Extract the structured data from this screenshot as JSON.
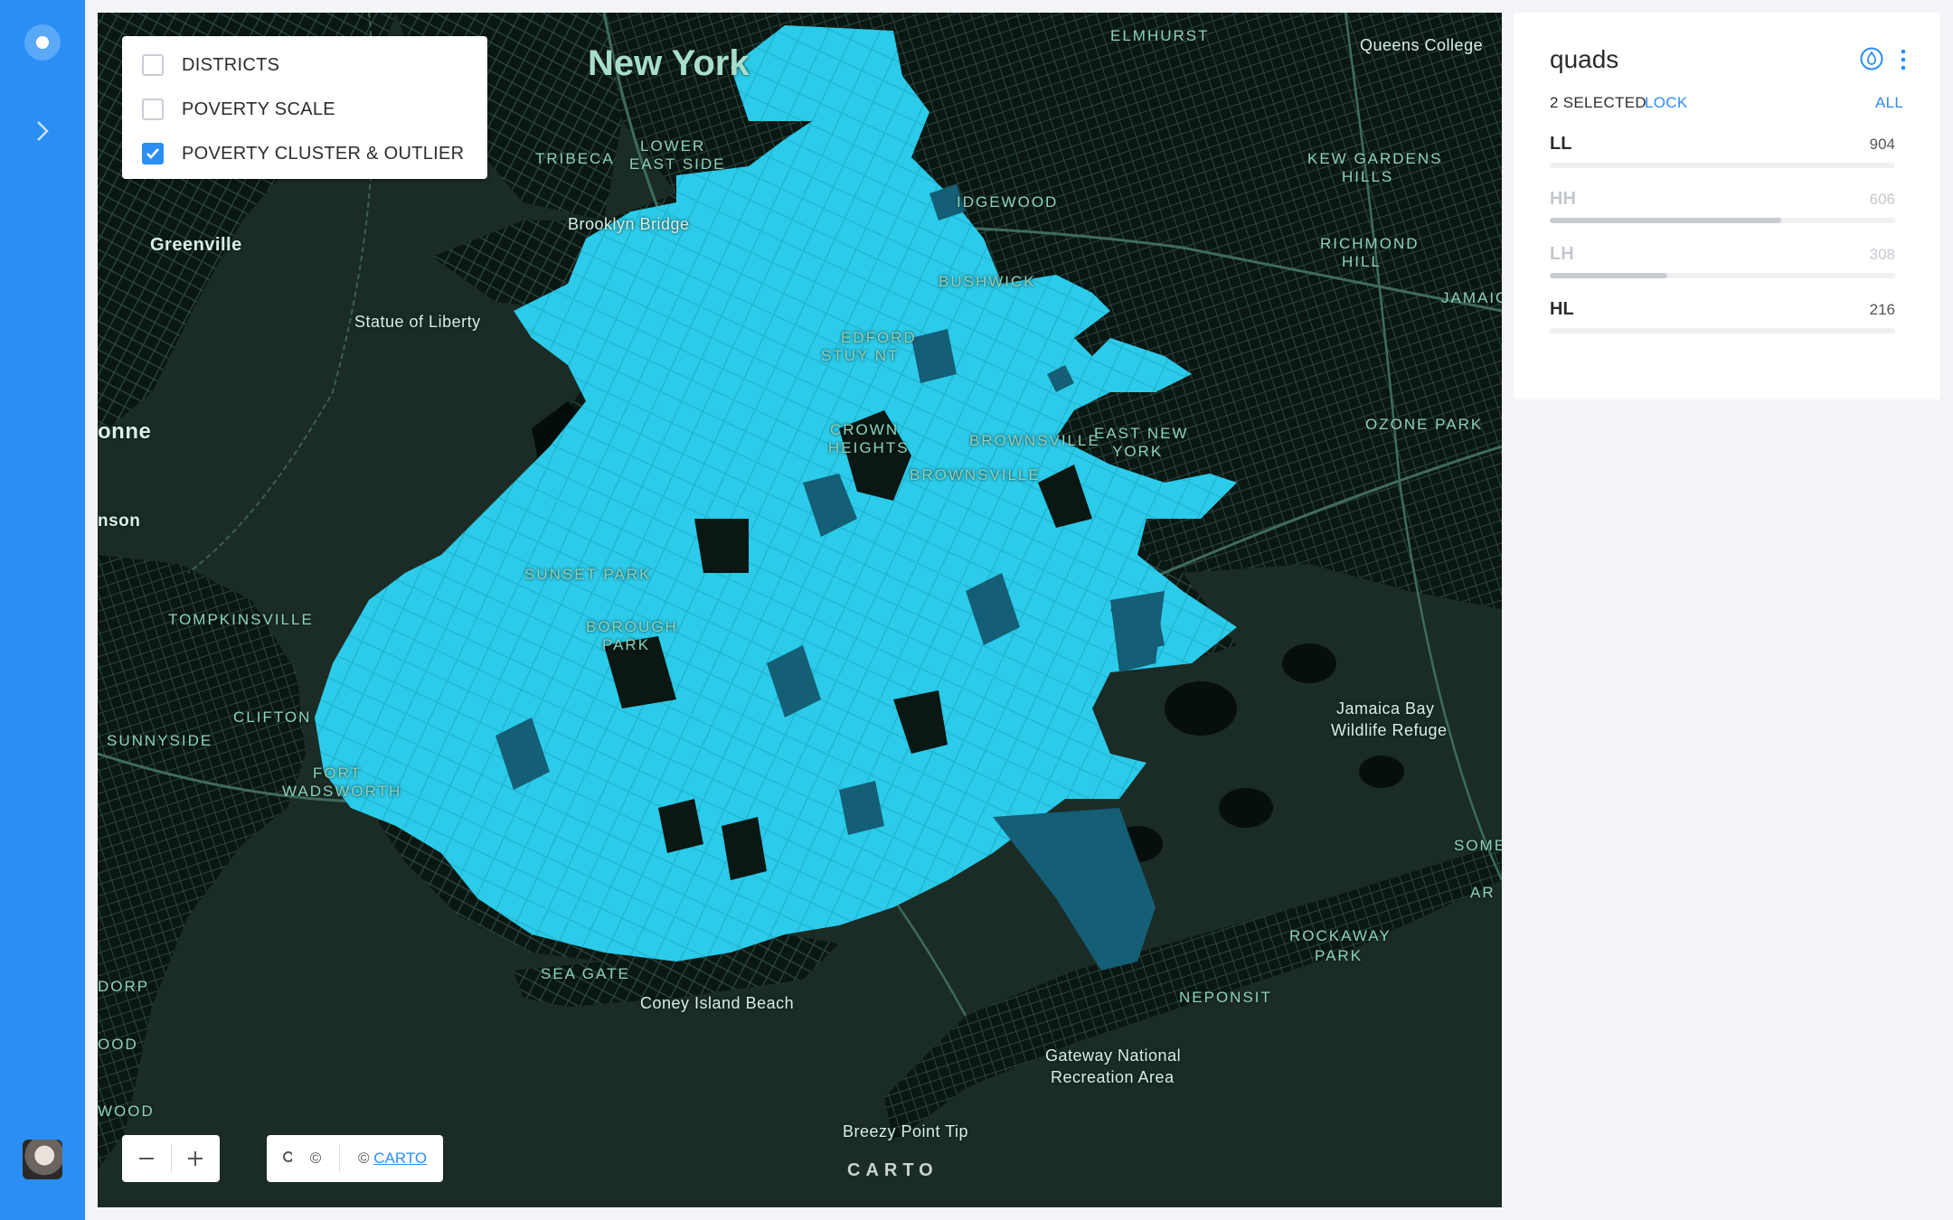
{
  "layers": {
    "items": [
      {
        "label": "DISTRICTS",
        "checked": false
      },
      {
        "label": "POVERTY SCALE",
        "checked": false
      },
      {
        "label": "POVERTY CLUSTER & OUTLIER",
        "checked": true
      }
    ]
  },
  "map": {
    "labels": {
      "new_york": "New York",
      "elmhurst": "ELMHURST",
      "queens_college": "Queens College",
      "tribeca": "TRIBECA",
      "lower_east_side_1": "LOWER",
      "lower_east_side_2": "EAST SIDE",
      "brooklyn_bridge": "Brooklyn Bridge",
      "greenville": "Greenville",
      "statue_of_liberty": "Statue of Liberty",
      "ridgewood": "IDGEWOOD",
      "bushwick": "BUSHWICK",
      "kew_gardens_1": "KEW GARDENS",
      "kew_gardens_2": "HILLS",
      "richmond_hill_1": "RICHMOND",
      "richmond_hill_2": "HILL",
      "jamaica": "JAMAICA",
      "bayonne": "onne",
      "bedford_1": "EDFORD",
      "bedford_2": "STUY   NT",
      "crown_heights_1": "CROWN",
      "crown_heights_2": "HEIGHTS",
      "brownsville": "BROWNSVILLE",
      "brownsville_2": "BROWNSVILLE",
      "east_new_york_1": "EAST NEW",
      "east_new_york_2": "YORK",
      "ozone_park": "OZONE PARK",
      "bronson": "nson",
      "sunset_park": "SUNSET PARK",
      "borough_park_1": "BOROUGH",
      "borough_park_2": "PARK",
      "tompkinsville": "TOMPKINSVILLE",
      "clifton": "CLIFTON",
      "sunnyside": "SUNNYSIDE",
      "fort_wadsworth_1": "FORT",
      "fort_wadsworth_2": "WADSWORTH",
      "jamaica_bay_1": "Jamaica Bay",
      "jamaica_bay_2": "Wildlife Refuge",
      "somerville": "SOME",
      "arverne": "AR",
      "rockaway_park_1": "ROCKAWAY",
      "rockaway_park_2": "PARK",
      "neponsit": "NEPONSIT",
      "sea_gate": "SEA GATE",
      "coney_island": "Coney Island Beach",
      "gateway_1": "Gateway National",
      "gateway_2": "Recreation Area",
      "breezy_point": "Breezy Point Tip",
      "dorp": "DORP",
      "ood": "OOD",
      "wood": "WOOD"
    },
    "colors": {
      "background": "#1b2b26",
      "land": "#0a1512",
      "roads": "#2e4a40",
      "cluster_ll": "#29c9e8",
      "cluster_dark": "#145e76"
    }
  },
  "controls": {
    "zoom_out": "—",
    "zoom_in": "+",
    "search_icon": "search-icon",
    "attribution_symbol": "©",
    "attribution_prefix": "©",
    "attribution_link": "CARTO",
    "watermark": "CARTO"
  },
  "widget": {
    "title": "quads",
    "selected_text": "2 SELECTED",
    "lock_label": "LOCK",
    "all_label": "ALL",
    "categories": [
      {
        "name": "LL",
        "value": "904",
        "selected": true,
        "fraction": 1.0
      },
      {
        "name": "HH",
        "value": "606",
        "selected": false,
        "fraction": 0.67
      },
      {
        "name": "LH",
        "value": "308",
        "selected": false,
        "fraction": 0.34
      },
      {
        "name": "HL",
        "value": "216",
        "selected": true,
        "fraction": 0.24
      }
    ]
  }
}
